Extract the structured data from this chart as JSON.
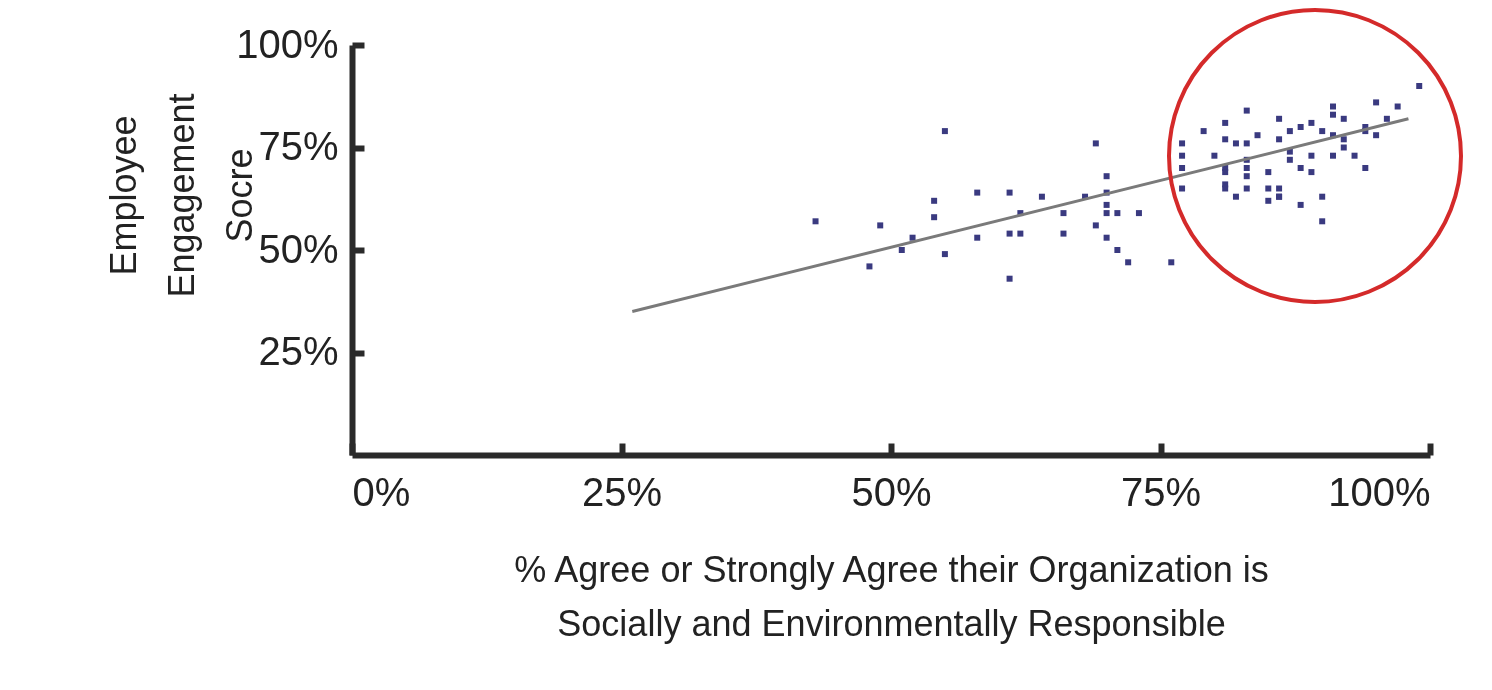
{
  "chart_data": {
    "type": "scatter",
    "xlabel": "% Agree or Strongly Agree their Organization is Socially and Environmentally Responsible",
    "ylabel": "Employee Engagement Socre",
    "xlim": [
      0,
      100
    ],
    "ylim": [
      0,
      100
    ],
    "xticks": [
      {
        "value": 0,
        "label": "0%"
      },
      {
        "value": 25,
        "label": "25%"
      },
      {
        "value": 50,
        "label": "50%"
      },
      {
        "value": 75,
        "label": "75%"
      },
      {
        "value": 100,
        "label": "100%"
      }
    ],
    "yticks": [
      {
        "value": 25,
        "label": "25%"
      },
      {
        "value": 50,
        "label": "50%"
      },
      {
        "value": 75,
        "label": "75%"
      },
      {
        "value": 100,
        "label": "100%"
      }
    ],
    "grid": false,
    "series": [
      {
        "marker": "square",
        "color": "#3a3a80",
        "x": [
          43,
          49,
          48,
          51,
          52,
          54,
          54,
          55,
          55,
          58,
          58,
          61,
          62,
          61,
          61,
          62,
          64,
          66,
          66,
          68,
          69,
          69,
          70,
          70,
          70,
          70,
          70,
          71,
          71,
          72,
          73,
          76,
          77,
          77,
          77,
          77,
          79,
          80,
          81,
          81,
          82,
          81,
          81,
          81,
          81,
          82,
          83,
          86,
          83,
          84,
          86,
          87,
          88,
          89,
          90,
          91,
          91,
          92,
          91,
          92,
          92,
          94,
          94,
          95,
          95,
          97,
          96,
          99,
          87,
          87,
          89,
          91,
          93,
          83,
          83,
          83,
          85,
          88,
          89,
          94,
          83,
          85,
          86,
          86,
          86,
          85,
          88,
          90,
          90
        ],
        "values": [
          57,
          56,
          46,
          50,
          53,
          62,
          58,
          79,
          49,
          64,
          53,
          54,
          54,
          64,
          43,
          59,
          63,
          59,
          54,
          63,
          76,
          56,
          64,
          68,
          53,
          61,
          59,
          59,
          50,
          47,
          59,
          47,
          76,
          73,
          70,
          65,
          79,
          73,
          81,
          77,
          76,
          70,
          69,
          65,
          66,
          63,
          84,
          82,
          76,
          78,
          77,
          79,
          80,
          81,
          79,
          85,
          83,
          82,
          78,
          77,
          75,
          80,
          79,
          78,
          86,
          85,
          82,
          90,
          74,
          72,
          73,
          73,
          73,
          72,
          70,
          68,
          69,
          70,
          69,
          70,
          65,
          65,
          65,
          63,
          63,
          62,
          61,
          63,
          57
        ]
      },
      {
        "type": "line",
        "color": "#7a7a7a",
        "line_style": "solid",
        "x": [
          26,
          98
        ],
        "values": [
          35,
          82
        ]
      }
    ]
  }
}
